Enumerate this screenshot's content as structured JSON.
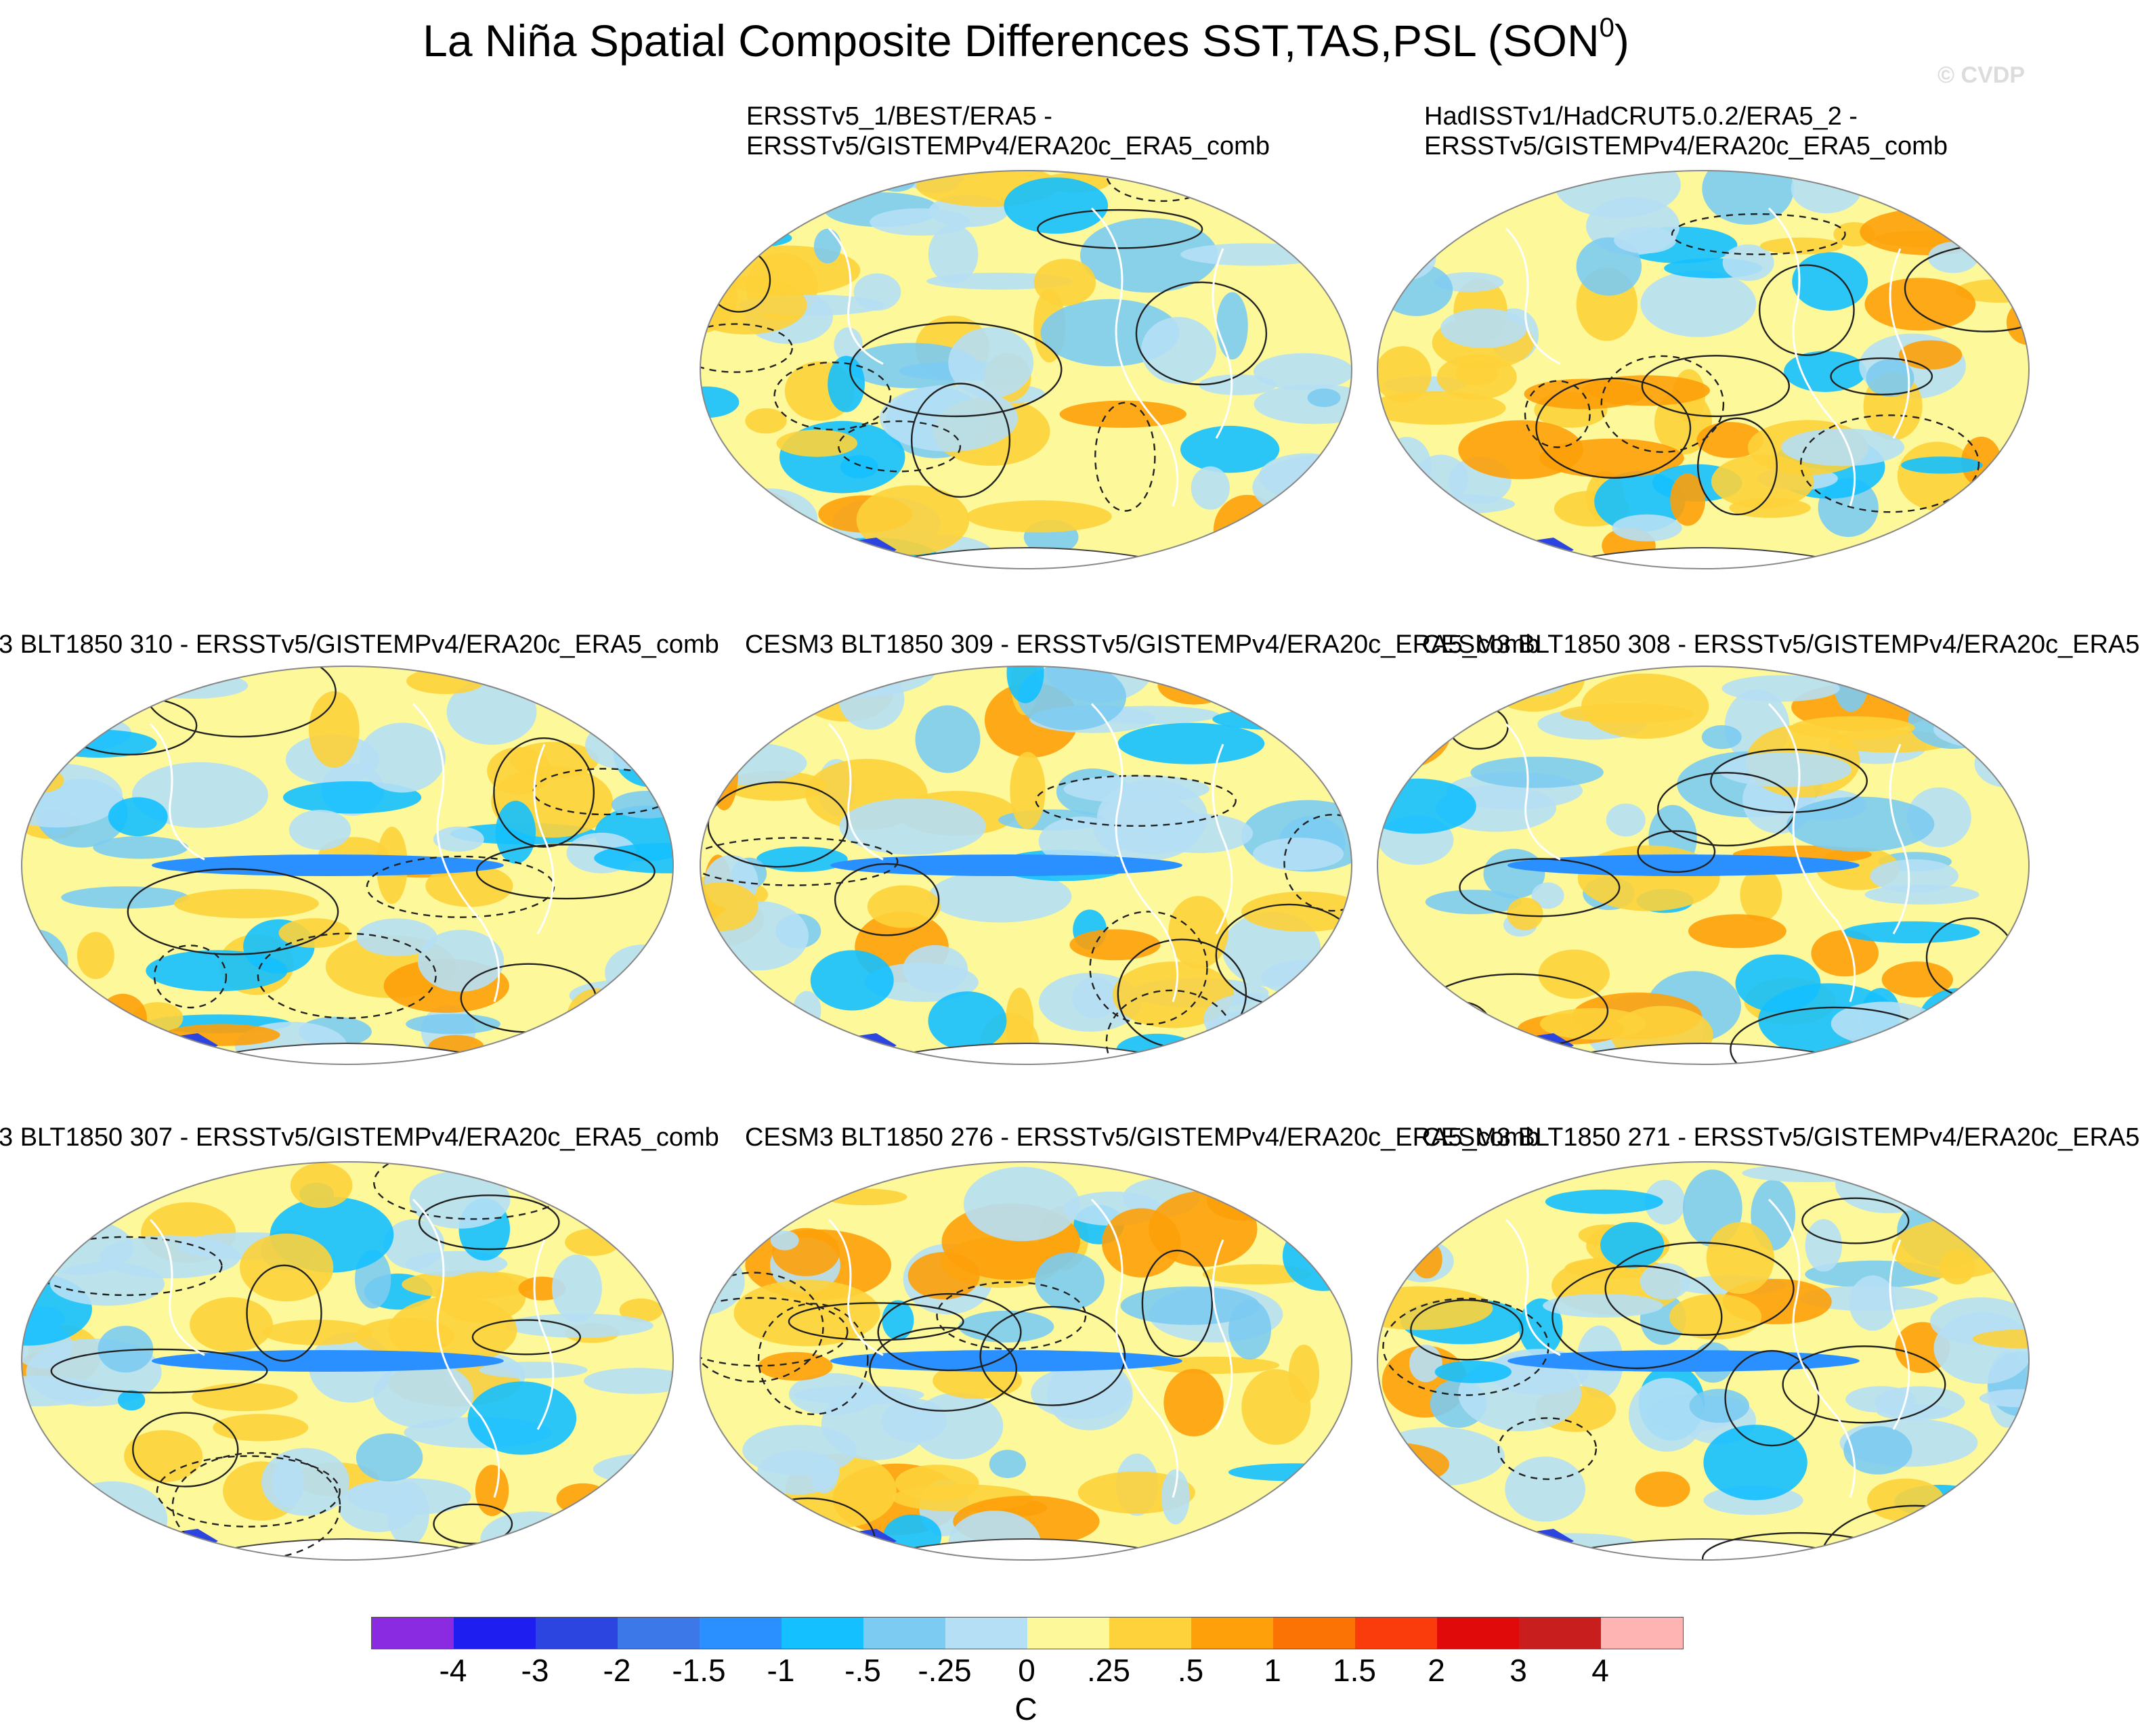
{
  "title": "La Niña Spatial Composite Differences SST,TAS,PSL (SON",
  "title_superscript": "0",
  "title_close": ")",
  "watermark": "© CVDP",
  "panels": [
    {
      "id": "p1",
      "line1": "ERSSTv5_1/BEST/ERA5 -",
      "line2": "ERSSTv5/GISTEMPv4/ERA20c_ERA5_comb"
    },
    {
      "id": "p2",
      "line1": "HadISSTv1/HadCRUT5.0.2/ERA5_2 -",
      "line2": "ERSSTv5/GISTEMPv4/ERA20c_ERA5_comb"
    },
    {
      "id": "p3",
      "line1": "3 BLT1850 310 - ERSSTv5/GISTEMPv4/ERA20c_ERA5_comb"
    },
    {
      "id": "p4",
      "line1": "CESM3 BLT1850 309 - ERSSTv5/GISTEMPv4/ERA20c_ERA5_comb"
    },
    {
      "id": "p5",
      "line1": "CESM3 BLT1850 308 - ERSSTv5/GISTEMPv4/ERA20c_ERA5"
    },
    {
      "id": "p6",
      "line1": "3 BLT1850 307 - ERSSTv5/GISTEMPv4/ERA20c_ERA5_comb"
    },
    {
      "id": "p7",
      "line1": "CESM3 BLT1850 276 - ERSSTv5/GISTEMPv4/ERA20c_ERA5_comb"
    },
    {
      "id": "p8",
      "line1": "CESM3 BLT1850 271 - ERSSTv5/GISTEMPv4/ERA20c_ERA5"
    }
  ],
  "colorbar": {
    "unit": "C",
    "colors": [
      "#8a2be2",
      "#1e1ef0",
      "#2d45e0",
      "#3c78e8",
      "#2a90ff",
      "#14c0ff",
      "#7ccbf2",
      "#b5dff5",
      "#fdf89a",
      "#fdd23a",
      "#fda00a",
      "#fc7305",
      "#fa3b0c",
      "#e10a0a",
      "#c81e1e",
      "#ffb4b4"
    ],
    "labels": [
      "-4",
      "-3",
      "-2",
      "-1.5",
      "-1",
      "-.5",
      "-.25",
      "0",
      ".25",
      ".5",
      "1",
      "1.5",
      "2",
      "3",
      "4"
    ]
  }
}
